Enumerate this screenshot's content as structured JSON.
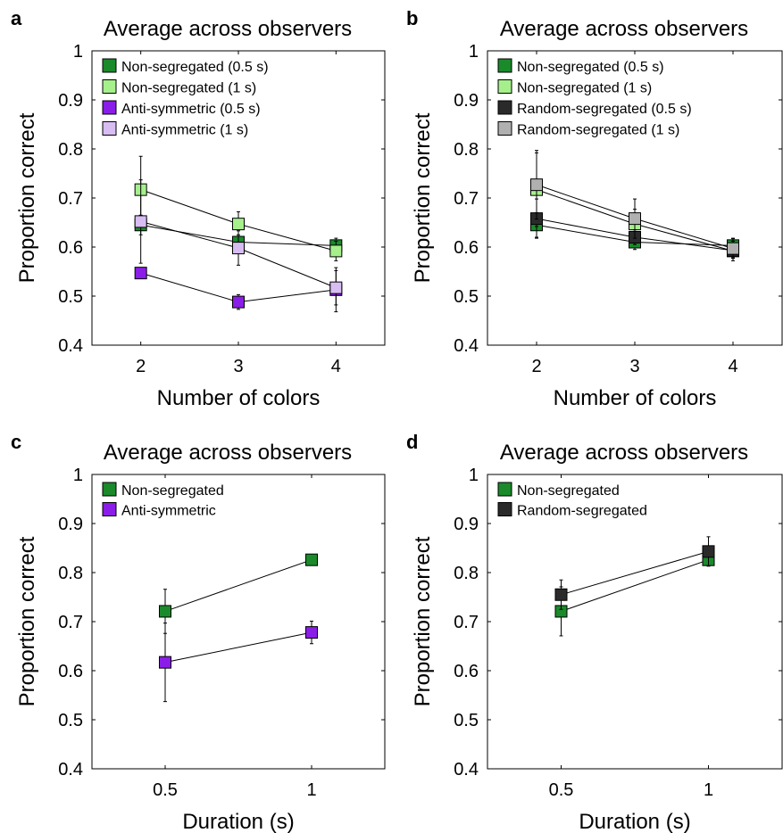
{
  "chart_data": [
    {
      "panel_letter": "a",
      "type": "line",
      "title": "Average across observers",
      "xlabel": "Number of colors",
      "ylabel": "Proportion correct",
      "x_ticks": [
        "2",
        "3",
        "4"
      ],
      "x_values": [
        2,
        3,
        4
      ],
      "xlim": [
        1.5,
        4.5
      ],
      "ylim": [
        0.4,
        1.0
      ],
      "y_ticks": [
        "0.4",
        "0.5",
        "0.6",
        "0.7",
        "0.8",
        "0.9",
        "1"
      ],
      "y_tick_values": [
        0.4,
        0.5,
        0.6,
        0.7,
        0.8,
        0.9,
        1.0
      ],
      "grid": false,
      "legend_position": "top-left",
      "series": [
        {
          "name": "Non-segregated (0.5 s)",
          "color": "#1a8a2a",
          "values": [
            0.645,
            0.61,
            0.603
          ],
          "errors": [
            0.02,
            0.015,
            0.015
          ]
        },
        {
          "name": "Non-segregated (1 s)",
          "color": "#a6f08c",
          "values": [
            0.717,
            0.647,
            0.592
          ],
          "errors": [
            0.068,
            0.025,
            0.02
          ]
        },
        {
          "name": "Anti-symmetric (0.5 s)",
          "color": "#8b1de8",
          "values": [
            0.547,
            0.488,
            0.513
          ],
          "errors": [
            0.01,
            0.015,
            0.045
          ]
        },
        {
          "name": "Anti-symmetric (1 s)",
          "color": "#d7bdf2",
          "values": [
            0.652,
            0.598,
            0.517
          ],
          "errors": [
            0.085,
            0.035,
            0.035
          ]
        }
      ]
    },
    {
      "panel_letter": "b",
      "type": "line",
      "title": "Average across observers",
      "xlabel": "Number of colors",
      "ylabel": "Proportion correct",
      "x_ticks": [
        "2",
        "3",
        "4"
      ],
      "x_values": [
        2,
        3,
        4
      ],
      "xlim": [
        1.5,
        4.5
      ],
      "ylim": [
        0.4,
        1.0
      ],
      "y_ticks": [
        "0.4",
        "0.5",
        "0.6",
        "0.7",
        "0.8",
        "0.9",
        "1"
      ],
      "y_tick_values": [
        0.4,
        0.5,
        0.6,
        0.7,
        0.8,
        0.9,
        1.0
      ],
      "grid": false,
      "legend_position": "top-left",
      "series": [
        {
          "name": "Non-segregated (0.5 s)",
          "color": "#1a8a2a",
          "values": [
            0.645,
            0.61,
            0.603
          ],
          "errors": [
            0.025,
            0.015,
            0.015
          ]
        },
        {
          "name": "Non-segregated (1 s)",
          "color": "#a6f08c",
          "values": [
            0.717,
            0.647,
            0.592
          ],
          "errors": [
            0.075,
            0.03,
            0.02
          ]
        },
        {
          "name": "Random-segregated (0.5 s)",
          "color": "#2a2a2a",
          "values": [
            0.658,
            0.62,
            0.593
          ],
          "errors": [
            0.04,
            0.015,
            0.015
          ]
        },
        {
          "name": "Random-segregated (1 s)",
          "color": "#b0b0b0",
          "values": [
            0.727,
            0.658,
            0.597
          ],
          "errors": [
            0.07,
            0.04,
            0.02
          ]
        }
      ]
    },
    {
      "panel_letter": "c",
      "type": "line",
      "title": "Average across observers",
      "xlabel": "Duration (s)",
      "ylabel": "Proportion correct",
      "x_ticks": [
        "0.5",
        "1"
      ],
      "x_values": [
        0.5,
        1
      ],
      "xlim": [
        0.25,
        1.25
      ],
      "ylim": [
        0.4,
        1.0
      ],
      "y_ticks": [
        "0.4",
        "0.5",
        "0.6",
        "0.7",
        "0.8",
        "0.9",
        "1"
      ],
      "y_tick_values": [
        0.4,
        0.5,
        0.6,
        0.7,
        0.8,
        0.9,
        1.0
      ],
      "grid": false,
      "legend_position": "top-left",
      "series": [
        {
          "name": "Non-segregated",
          "color": "#1a8a2a",
          "values": [
            0.721,
            0.826
          ],
          "errors": [
            0.045,
            0.01
          ]
        },
        {
          "name": "Anti-symmetric",
          "color": "#8b1de8",
          "values": [
            0.617,
            0.678
          ],
          "errors": [
            0.08,
            0.023
          ]
        }
      ]
    },
    {
      "panel_letter": "d",
      "type": "line",
      "title": "Average across observers",
      "xlabel": "Duration (s)",
      "ylabel": "Proportion correct",
      "x_ticks": [
        "0.5",
        "1"
      ],
      "x_values": [
        0.5,
        1
      ],
      "xlim": [
        0.25,
        1.25
      ],
      "ylim": [
        0.4,
        1.0
      ],
      "y_ticks": [
        "0.4",
        "0.5",
        "0.6",
        "0.7",
        "0.8",
        "0.9",
        "1"
      ],
      "y_tick_values": [
        0.4,
        0.5,
        0.6,
        0.7,
        0.8,
        0.9,
        1.0
      ],
      "grid": false,
      "legend_position": "top-left",
      "series": [
        {
          "name": "Non-segregated",
          "color": "#1a8a2a",
          "values": [
            0.721,
            0.826
          ],
          "errors": [
            0.05,
            0.01
          ]
        },
        {
          "name": "Random-segregated",
          "color": "#2a2a2a",
          "values": [
            0.755,
            0.843
          ],
          "errors": [
            0.03,
            0.03
          ]
        }
      ]
    }
  ]
}
